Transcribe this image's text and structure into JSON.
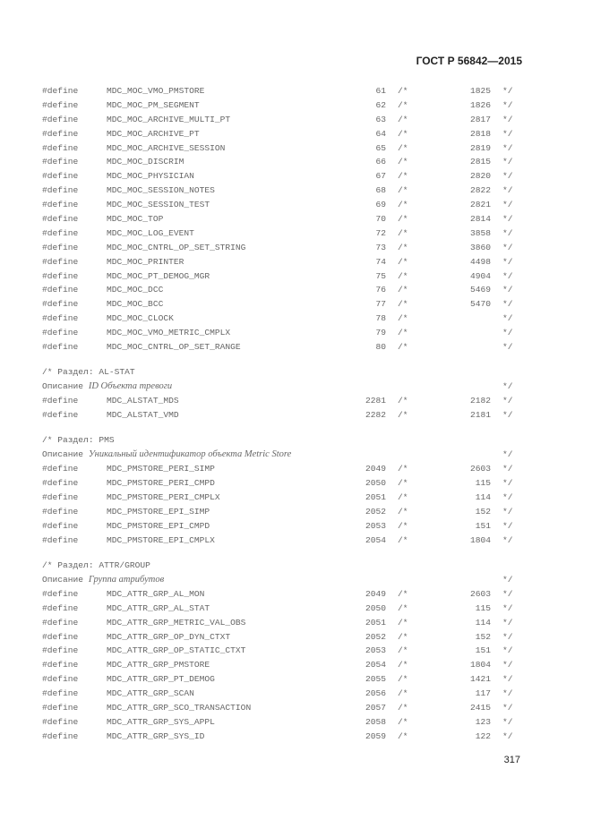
{
  "header": {
    "standard": "ГОСТ Р 56842—2015"
  },
  "footer": {
    "page_number": "317"
  },
  "tokens": {
    "define": "#define",
    "comment_open": "/*",
    "comment_close": "*/"
  },
  "sections": [
    {
      "title": "",
      "desc_label": "",
      "desc_text": "",
      "rows": [
        {
          "name": "MDC_MOC_VMO_PMSTORE",
          "num": "61",
          "val": "1825"
        },
        {
          "name": "MDC_MOC_PM_SEGMENT",
          "num": "62",
          "val": "1826"
        },
        {
          "name": "MDC_MOC_ARCHIVE_MULTI_PT",
          "num": "63",
          "val": "2817"
        },
        {
          "name": "MDC_MOC_ARCHIVE_PT",
          "num": "64",
          "val": "2818"
        },
        {
          "name": "MDC_MOC_ARCHIVE_SESSION",
          "num": "65",
          "val": "2819"
        },
        {
          "name": "MDC_MOC_DISCRIM",
          "num": "66",
          "val": "2815"
        },
        {
          "name": "MDC_MOC_PHYSICIAN",
          "num": "67",
          "val": "2820"
        },
        {
          "name": "MDC_MOC_SESSION_NOTES",
          "num": "68",
          "val": "2822"
        },
        {
          "name": "MDC_MOC_SESSION_TEST",
          "num": "69",
          "val": "2821"
        },
        {
          "name": "MDC_MOC_TOP",
          "num": "70",
          "val": "2814"
        },
        {
          "name": "MDC_MOC_LOG_EVENT",
          "num": "72",
          "val": "3858"
        },
        {
          "name": "MDC_MOC_CNTRL_OP_SET_STRING",
          "num": "73",
          "val": "3860"
        },
        {
          "name": "MDC_MOC_PRINTER",
          "num": "74",
          "val": "4498"
        },
        {
          "name": "MDC_MOC_PT_DEMOG_MGR",
          "num": "75",
          "val": "4904"
        },
        {
          "name": "MDC_MOC_DCC",
          "num": "76",
          "val": "5469"
        },
        {
          "name": "MDC_MOC_BCC",
          "num": "77",
          "val": "5470"
        },
        {
          "name": "MDC_MOC_CLOCK",
          "num": "78",
          "val": ""
        },
        {
          "name": "MDC_MOC_VMO_METRIC_CMPLX",
          "num": "79",
          "val": ""
        },
        {
          "name": "MDC_MOC_CNTRL_OP_SET_RANGE",
          "num": "80",
          "val": ""
        }
      ]
    },
    {
      "title": "/* Раздел: AL-STAT",
      "desc_label": "Описание",
      "desc_text": "ID Объекта тревоги",
      "rows": [
        {
          "name": "MDC_ALSTAT_MDS",
          "num": "2281",
          "val": "2182"
        },
        {
          "name": "MDC_ALSTAT_VMD",
          "num": "2282",
          "val": "2181"
        }
      ]
    },
    {
      "title": "/* Раздел: PMS",
      "desc_label": "Описание",
      "desc_text": "Уникальный идентификатор объекта Metric Store",
      "rows": [
        {
          "name": "MDC_PMSTORE_PERI_SIMP",
          "num": "2049",
          "val": "2603"
        },
        {
          "name": "MDC_PMSTORE_PERI_CMPD",
          "num": "2050",
          "val": "115"
        },
        {
          "name": "MDC_PMSTORE_PERI_CMPLX",
          "num": "2051",
          "val": "114"
        },
        {
          "name": "MDC_PMSTORE_EPI_SIMP",
          "num": "2052",
          "val": "152"
        },
        {
          "name": "MDC_PMSTORE_EPI_CMPD",
          "num": "2053",
          "val": "151"
        },
        {
          "name": "MDC_PMSTORE_EPI_CMPLX",
          "num": "2054",
          "val": "1804"
        }
      ]
    },
    {
      "title": "/* Раздел: ATTR/GROUP",
      "desc_label": "Описание",
      "desc_text": "Группа атрибутов",
      "rows": [
        {
          "name": "MDC_ATTR_GRP_AL_MON",
          "num": "2049",
          "val": "2603"
        },
        {
          "name": "MDC_ATTR_GRP_AL_STAT",
          "num": "2050",
          "val": "115"
        },
        {
          "name": "MDC_ATTR_GRP_METRIC_VAL_OBS",
          "num": "2051",
          "val": "114"
        },
        {
          "name": "MDC_ATTR_GRP_OP_DYN_CTXT",
          "num": "2052",
          "val": "152"
        },
        {
          "name": "MDC_ATTR_GRP_OP_STATIC_CTXT",
          "num": "2053",
          "val": "151"
        },
        {
          "name": "MDC_ATTR_GRP_PMSTORE",
          "num": "2054",
          "val": "1804"
        },
        {
          "name": "MDC_ATTR_GRP_PT_DEMOG",
          "num": "2055",
          "val": "1421"
        },
        {
          "name": "MDC_ATTR_GRP_SCAN",
          "num": "2056",
          "val": "117"
        },
        {
          "name": "MDC_ATTR_GRP_SCO_TRANSACTION",
          "num": "2057",
          "val": "2415"
        },
        {
          "name": "MDC_ATTR_GRP_SYS_APPL",
          "num": "2058",
          "val": "123"
        },
        {
          "name": "MDC_ATTR_GRP_SYS_ID",
          "num": "2059",
          "val": "122"
        }
      ]
    }
  ]
}
